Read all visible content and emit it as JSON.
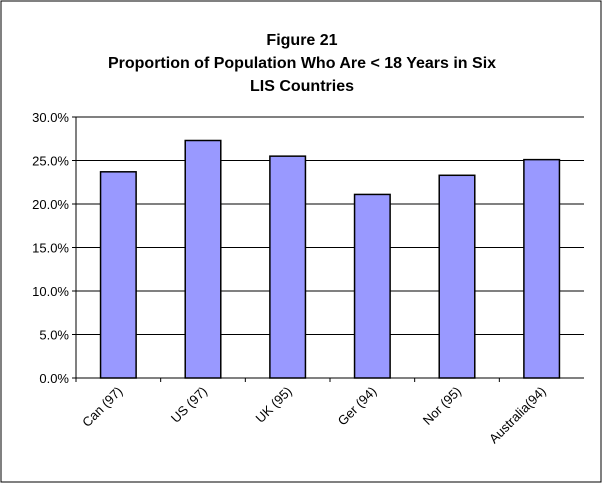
{
  "chart_data": {
    "type": "bar",
    "title_lines": [
      "Figure 21",
      "Proportion of Population Who Are < 18 Years in Six",
      "LIS Countries"
    ],
    "categories": [
      "Can (97)",
      "US (97)",
      "UK (95)",
      "Ger (94)",
      "Nor (95)",
      "Australia(94)"
    ],
    "values": [
      23.7,
      27.3,
      25.5,
      21.1,
      23.3,
      25.1
    ],
    "color": "#9999ff",
    "ylim": [
      0,
      30
    ],
    "yticks": [
      {
        "value": 0,
        "label": "0.0%"
      },
      {
        "value": 5,
        "label": "5.0%"
      },
      {
        "value": 10,
        "label": "10.0%"
      },
      {
        "value": 15,
        "label": "15.0%"
      },
      {
        "value": 20,
        "label": "20.0%"
      },
      {
        "value": 25,
        "label": "25.0%"
      },
      {
        "value": 30,
        "label": "30.0%"
      }
    ],
    "grid": true
  }
}
